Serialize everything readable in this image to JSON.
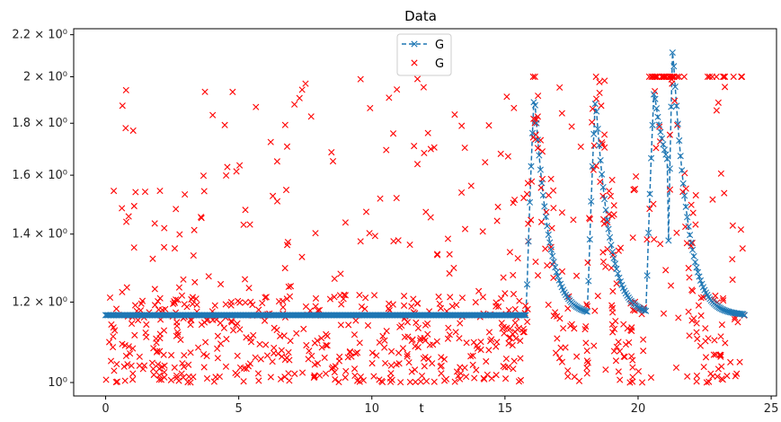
{
  "chart_data": {
    "type": "line",
    "title": "Data",
    "xlabel": "t",
    "ylabel": "",
    "xlim": [
      -1.2,
      25.2
    ],
    "ylim": [
      0.97,
      2.23
    ],
    "yscale": "log",
    "grid": false,
    "legend": "top-center",
    "xticks": [
      0,
      5,
      10,
      15,
      20,
      25
    ],
    "xtick_labels": [
      "0",
      "5",
      "10",
      "15",
      "20",
      "25"
    ],
    "yticks": [
      1.0,
      1.2,
      1.4,
      1.6,
      1.8,
      2.0,
      2.2
    ],
    "ytick_labels": [
      "10⁰",
      "1.2 × 10⁰",
      "1.4 × 10⁰",
      "1.6 × 10⁰",
      "1.8 × 10⁰",
      "2 × 10⁰",
      "2.2 × 10⁰"
    ],
    "series": [
      {
        "name": "G",
        "style": "dashed-x",
        "color": "#1f77b4",
        "t_start": 0,
        "t_end": 24,
        "n_points": 480,
        "baseline": 1.165,
        "segments": [
          {
            "t": [
              0,
              15.8
            ],
            "value": 1.165
          },
          {
            "t": [
              15.8,
              18.1
            ],
            "peak_t": 16.1,
            "peak": 1.93,
            "tail": 1.165
          },
          {
            "t": [
              18.1,
              20.3
            ],
            "peak_t": 18.4,
            "peak": 1.91,
            "tail": 1.165
          },
          {
            "t": [
              20.3,
              21.1
            ],
            "peak_t": 20.6,
            "peak": 1.94,
            "tail": 1.52
          },
          {
            "t": [
              21.1,
              24.0
            ],
            "peak_t": 21.3,
            "peak": 2.14,
            "tail": 1.165
          }
        ]
      },
      {
        "name": "G",
        "style": "markers-x",
        "color": "#ff0000",
        "t_start": 0,
        "t_end": 24,
        "n_points": 900,
        "noise": "scattered observations around series 1",
        "saturation_value": 2.0,
        "saturation_range_t": [
          20.3,
          21.8
        ]
      }
    ]
  }
}
